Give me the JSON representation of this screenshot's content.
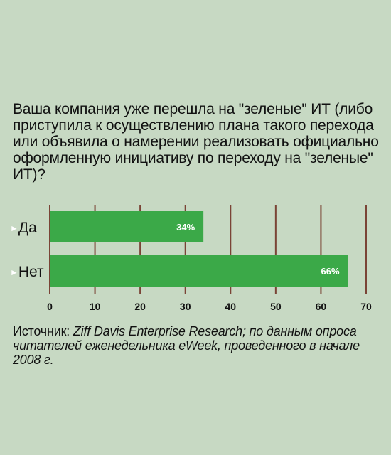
{
  "question": "Ваша компания уже перешла на \"зеленые\" ИТ (либо приступила к осуществлению плана такого перехода или объявила о намерении реализовать официально оформленную инициативу по переходу на \"зеленые\" ИТ)?",
  "chart_data": {
    "type": "bar",
    "orientation": "horizontal",
    "title": "Ваша компания уже перешла на \"зеленые\" ИТ (либо приступила к осуществлению плана такого перехода или объявила о намерении реализовать официально оформленную инициативу по переходу на \"зеленые\" ИТ)?",
    "categories": [
      "Да",
      "Нет"
    ],
    "values": [
      34,
      66
    ],
    "value_labels": [
      "34%",
      "66%"
    ],
    "ticks": [
      0,
      10,
      20,
      30,
      40,
      50,
      60,
      70
    ],
    "xlim": [
      0,
      70
    ],
    "grid": true,
    "bar_color": "#3ba948",
    "grid_color": "#7a4436",
    "marker": "►"
  },
  "source": {
    "prefix": "Источник: ",
    "body": "Ziff Davis Enterprise Research; по данным опроса читателей еженедельника eWeek, проведенного в начале 2008 г."
  }
}
